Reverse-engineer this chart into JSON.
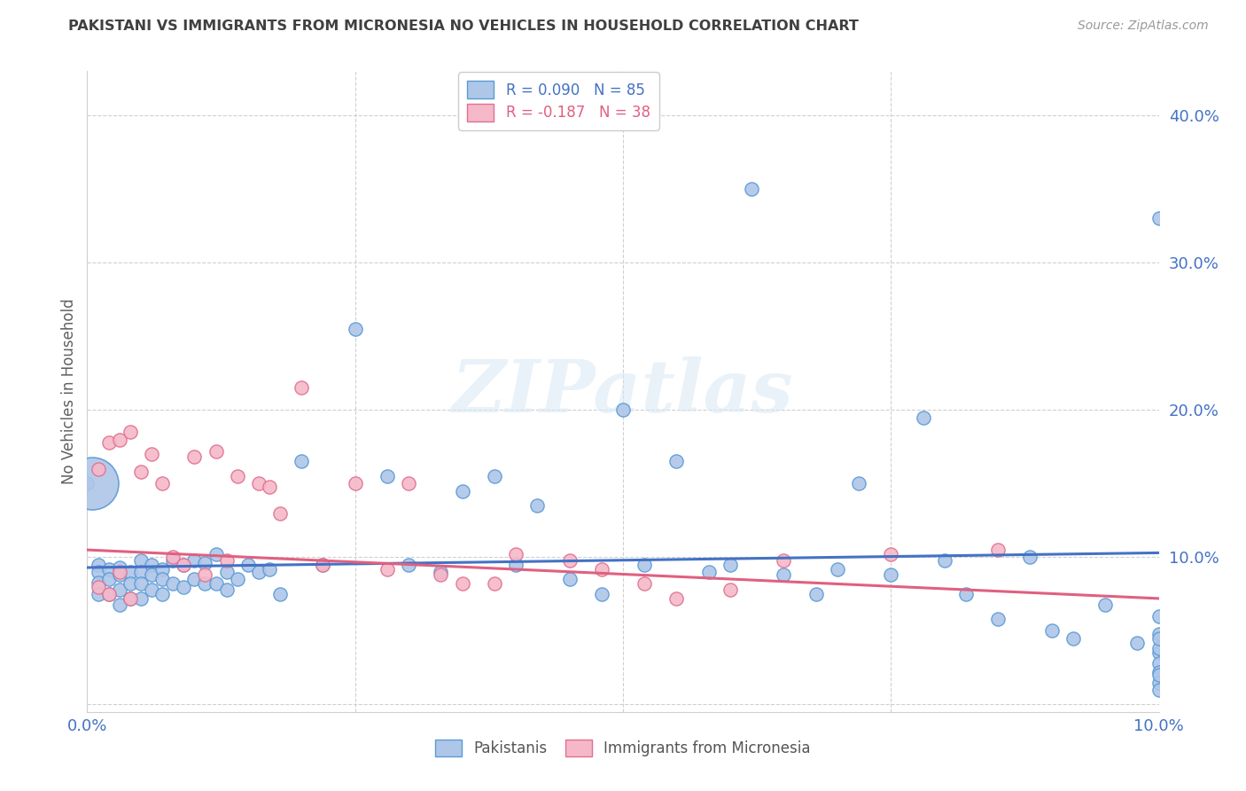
{
  "title": "PAKISTANI VS IMMIGRANTS FROM MICRONESIA NO VEHICLES IN HOUSEHOLD CORRELATION CHART",
  "source": "Source: ZipAtlas.com",
  "ylabel": "No Vehicles in Household",
  "blue_color": "#aec6e8",
  "pink_color": "#f5b8c8",
  "blue_edge_color": "#5b9bd5",
  "pink_edge_color": "#e07090",
  "blue_line_color": "#4472c4",
  "pink_line_color": "#e06080",
  "tick_color": "#4472c4",
  "title_color": "#404040",
  "ylabel_color": "#606060",
  "grid_color": "#d0d0d0",
  "background_color": "#ffffff",
  "xmin": 0.0,
  "xmax": 0.1,
  "ymin": -0.005,
  "ymax": 0.43,
  "ytick_vals": [
    0.0,
    0.1,
    0.2,
    0.3,
    0.4
  ],
  "ytick_labels": [
    "",
    "10.0%",
    "20.0%",
    "30.0%",
    "40.0%"
  ],
  "xtick_vals": [
    0.0,
    0.025,
    0.05,
    0.075,
    0.1
  ],
  "xtick_labels": [
    "0.0%",
    "",
    "",
    "",
    "10.0%"
  ],
  "trendline_blue": [
    0.093,
    0.103
  ],
  "trendline_pink": [
    0.105,
    0.072
  ],
  "legend1_label": "R = 0.090   N = 85",
  "legend2_label": "R = -0.187   N = 38",
  "watermark": "ZIPatlas",
  "pakistanis_x": [
    0.0,
    0.001,
    0.001,
    0.001,
    0.001,
    0.002,
    0.002,
    0.002,
    0.003,
    0.003,
    0.003,
    0.003,
    0.004,
    0.004,
    0.004,
    0.005,
    0.005,
    0.005,
    0.005,
    0.006,
    0.006,
    0.006,
    0.007,
    0.007,
    0.007,
    0.008,
    0.008,
    0.009,
    0.009,
    0.01,
    0.01,
    0.011,
    0.011,
    0.012,
    0.012,
    0.013,
    0.013,
    0.014,
    0.015,
    0.016,
    0.017,
    0.018,
    0.02,
    0.022,
    0.025,
    0.028,
    0.03,
    0.033,
    0.035,
    0.038,
    0.04,
    0.042,
    0.045,
    0.048,
    0.05,
    0.052,
    0.055,
    0.058,
    0.06,
    0.062,
    0.065,
    0.068,
    0.07,
    0.072,
    0.075,
    0.078,
    0.08,
    0.082,
    0.085,
    0.088,
    0.09,
    0.092,
    0.095,
    0.098,
    0.1,
    0.1,
    0.1,
    0.1,
    0.1,
    0.1,
    0.1,
    0.1,
    0.1,
    0.1,
    0.1
  ],
  "pakistanis_y": [
    0.15,
    0.095,
    0.09,
    0.083,
    0.075,
    0.092,
    0.085,
    0.075,
    0.093,
    0.088,
    0.078,
    0.068,
    0.09,
    0.082,
    0.072,
    0.098,
    0.09,
    0.082,
    0.072,
    0.095,
    0.088,
    0.078,
    0.092,
    0.085,
    0.075,
    0.098,
    0.082,
    0.095,
    0.08,
    0.098,
    0.085,
    0.096,
    0.082,
    0.102,
    0.082,
    0.09,
    0.078,
    0.085,
    0.095,
    0.09,
    0.092,
    0.075,
    0.165,
    0.095,
    0.255,
    0.155,
    0.095,
    0.09,
    0.145,
    0.155,
    0.095,
    0.135,
    0.085,
    0.075,
    0.2,
    0.095,
    0.165,
    0.09,
    0.095,
    0.35,
    0.088,
    0.075,
    0.092,
    0.15,
    0.088,
    0.195,
    0.098,
    0.075,
    0.058,
    0.1,
    0.05,
    0.045,
    0.068,
    0.042,
    0.048,
    0.06,
    0.035,
    0.028,
    0.022,
    0.015,
    0.038,
    0.33,
    0.045,
    0.02,
    0.01
  ],
  "pakistanis_size_big": [
    0
  ],
  "pakistanis_big_x": [
    0.001
  ],
  "pakistanis_big_y": [
    0.15
  ],
  "micronesia_x": [
    0.001,
    0.001,
    0.002,
    0.002,
    0.003,
    0.003,
    0.004,
    0.004,
    0.005,
    0.006,
    0.007,
    0.008,
    0.009,
    0.01,
    0.011,
    0.012,
    0.013,
    0.014,
    0.016,
    0.017,
    0.018,
    0.02,
    0.022,
    0.025,
    0.028,
    0.03,
    0.033,
    0.035,
    0.038,
    0.04,
    0.045,
    0.048,
    0.052,
    0.055,
    0.06,
    0.065,
    0.075,
    0.085
  ],
  "micronesia_y": [
    0.16,
    0.08,
    0.178,
    0.075,
    0.18,
    0.09,
    0.185,
    0.072,
    0.158,
    0.17,
    0.15,
    0.1,
    0.095,
    0.168,
    0.088,
    0.172,
    0.098,
    0.155,
    0.15,
    0.148,
    0.13,
    0.215,
    0.095,
    0.15,
    0.092,
    0.15,
    0.088,
    0.082,
    0.082,
    0.102,
    0.098,
    0.092,
    0.082,
    0.072,
    0.078,
    0.098,
    0.102,
    0.105
  ]
}
